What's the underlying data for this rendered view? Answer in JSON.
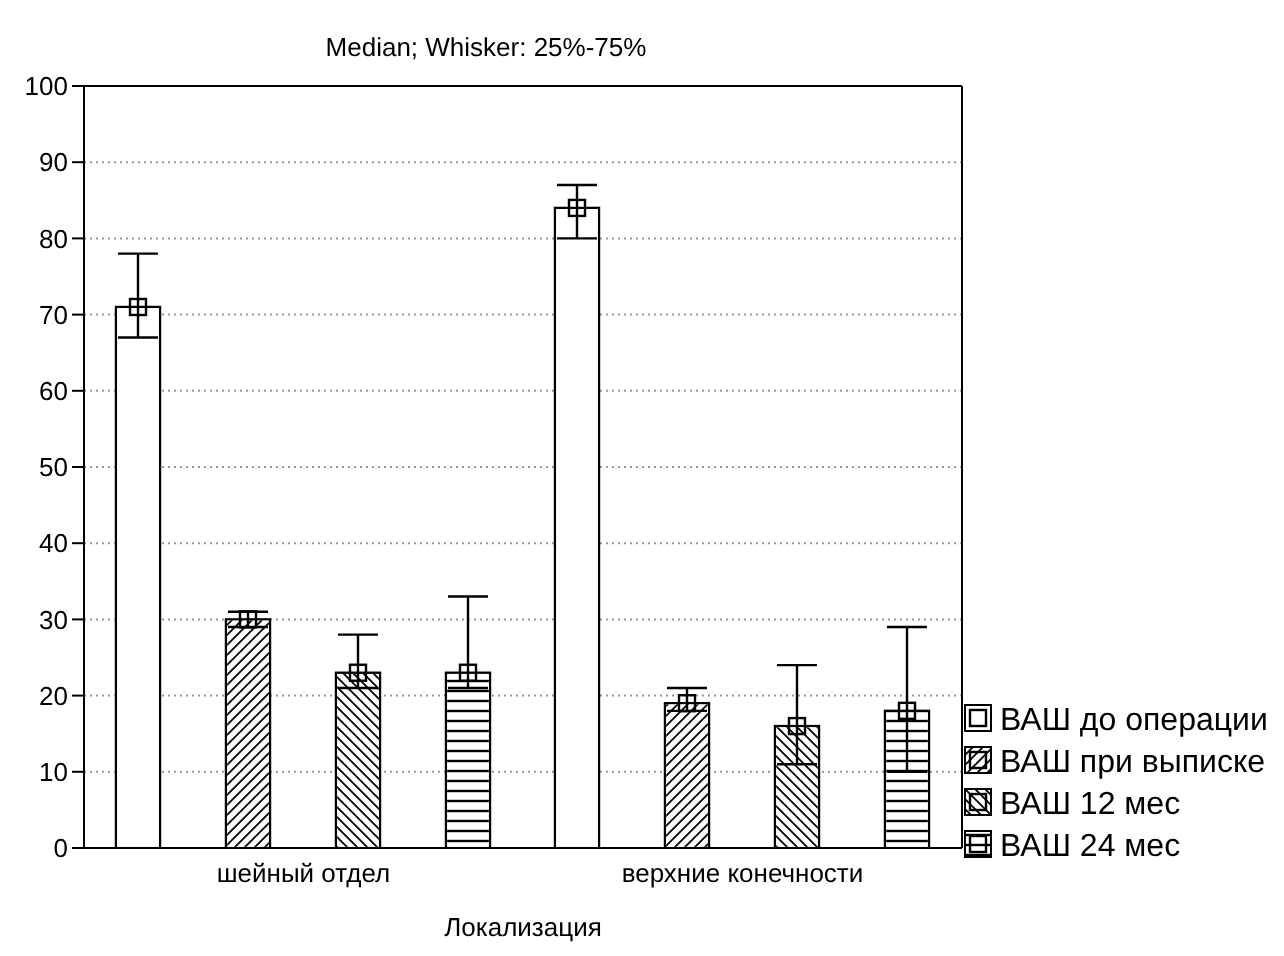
{
  "chart_data": {
    "type": "bar",
    "title": "Median; Whisker: 25%-75%",
    "xlabel": "Локализация",
    "categories": [
      "шейный отдел",
      "верхние конечности"
    ],
    "series": [
      {
        "name": "ВАШ до операции",
        "color": "#ffffff",
        "values": [
          71,
          84
        ],
        "errors": [
          [
            67,
            78
          ],
          [
            80,
            87
          ]
        ]
      },
      {
        "name": "ВАШ при выписке",
        "color": "#ffffff",
        "values": [
          30,
          19
        ],
        "errors": [
          [
            29,
            31
          ],
          [
            18,
            21
          ]
        ]
      },
      {
        "name": "ВАШ 12 мес",
        "color": "#ffffff",
        "values": [
          23,
          16
        ],
        "errors": [
          [
            21,
            28
          ],
          [
            11,
            24
          ]
        ]
      },
      {
        "name": "ВАШ 24 мес",
        "color": "#ffffff",
        "values": [
          23,
          18
        ],
        "errors": [
          [
            21,
            33
          ],
          [
            10,
            29
          ]
        ]
      }
    ],
    "ylim": [
      0,
      100
    ],
    "yticks": [
      0,
      10,
      20,
      30,
      40,
      50,
      60,
      70,
      80,
      90,
      100
    ],
    "grid": "y",
    "legend": "bottom right",
    "marker": "square"
  }
}
